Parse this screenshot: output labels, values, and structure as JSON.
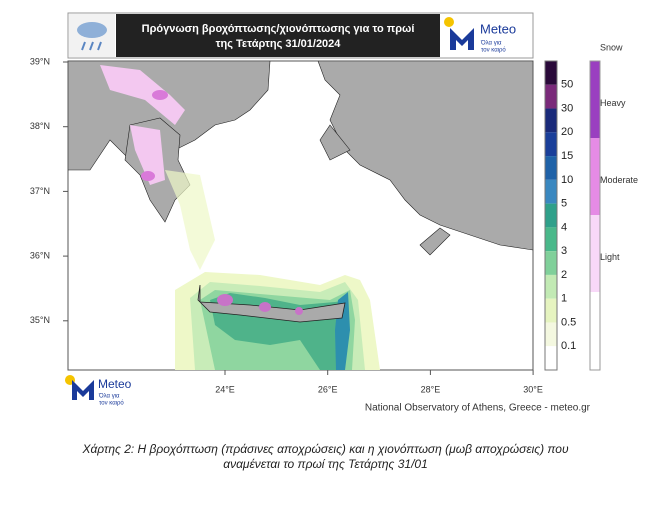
{
  "header": {
    "title_lines": [
      "Πρόγνωση βροχόπτωσης/χιονόπτωσης για το πρωί",
      "της Τετάρτης 31/01/2024"
    ],
    "logo": {
      "name": "Meteo",
      "tagline_lines": [
        "Όλα για",
        "τον καιρό"
      ]
    }
  },
  "map": {
    "lat_labels": [
      "39°N",
      "38°N",
      "37°N",
      "36°N",
      "35°N"
    ],
    "lon_labels": [
      "24°E",
      "26°E",
      "28°E",
      "30°E"
    ]
  },
  "legend": {
    "rain_levels": [
      50,
      30,
      20,
      15,
      10,
      5,
      4,
      3,
      2,
      1,
      0.5,
      0.1
    ],
    "snow_title": "Snow",
    "snow_levels": [
      "Heavy",
      "Moderate",
      "Light"
    ]
  },
  "footer": {
    "credit": "National Observatory of Athens, Greece - meteo.gr"
  },
  "caption_lines": [
    "Χάρτης 2: Η βροχόπτωση (πράσινες αποχρώσεις) και η χιονόπτωση (μωβ αποχρώσεις) που",
    "αναμένεται το πρωί της Τετάρτης 31/01"
  ]
}
